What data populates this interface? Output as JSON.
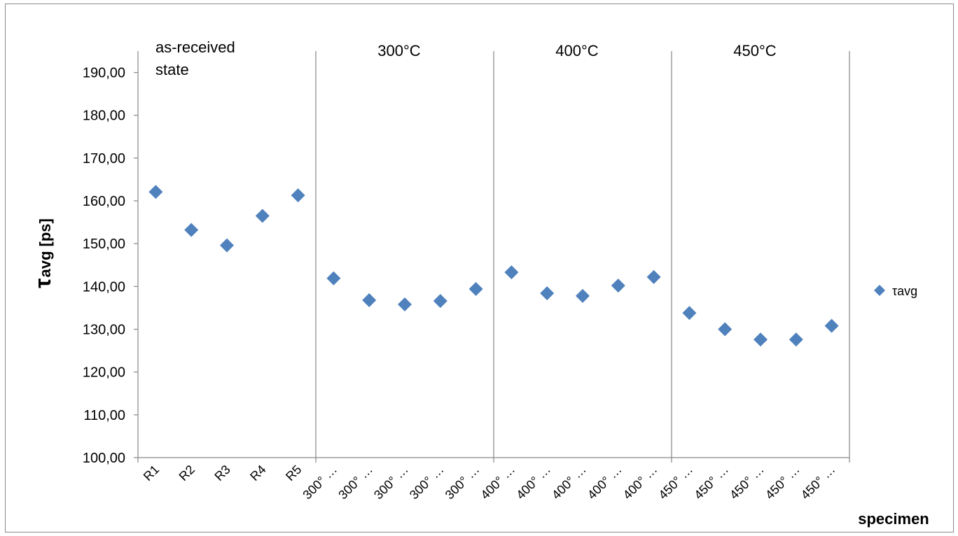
{
  "chart_data": {
    "type": "scatter",
    "xlabel": "specimen",
    "ylabel_main": "τ",
    "ylabel_rest": "avg [ps]",
    "ylim": [
      100,
      195
    ],
    "yticks": [
      "100,00",
      "110,00",
      "120,00",
      "130,00",
      "140,00",
      "150,00",
      "160,00",
      "170,00",
      "180,00",
      "190,00"
    ],
    "grid": false,
    "legend_position": "right",
    "categories": [
      "R1",
      "R2",
      "R3",
      "R4",
      "R5",
      "300° …",
      "300° …",
      "300° …",
      "300° …",
      "300° …",
      "400° …",
      "400° …",
      "400° …",
      "400° …",
      "400° …",
      "450° …",
      "450° …",
      "450° …",
      "450° …",
      "450° …"
    ],
    "series": [
      {
        "name": "τavg",
        "color": "#4f81bd",
        "marker": "diamond",
        "values": [
          162.1,
          153.2,
          149.6,
          156.5,
          161.3,
          141.9,
          136.8,
          135.8,
          136.6,
          139.4,
          143.3,
          138.4,
          137.8,
          140.2,
          142.2,
          133.8,
          130.0,
          127.6,
          127.6,
          130.8
        ]
      }
    ],
    "groups": [
      {
        "label_lines": [
          "as-received",
          "state"
        ]
      },
      {
        "label_lines": [
          "300°C"
        ]
      },
      {
        "label_lines": [
          "400°C"
        ]
      },
      {
        "label_lines": [
          "450°C"
        ]
      }
    ]
  }
}
